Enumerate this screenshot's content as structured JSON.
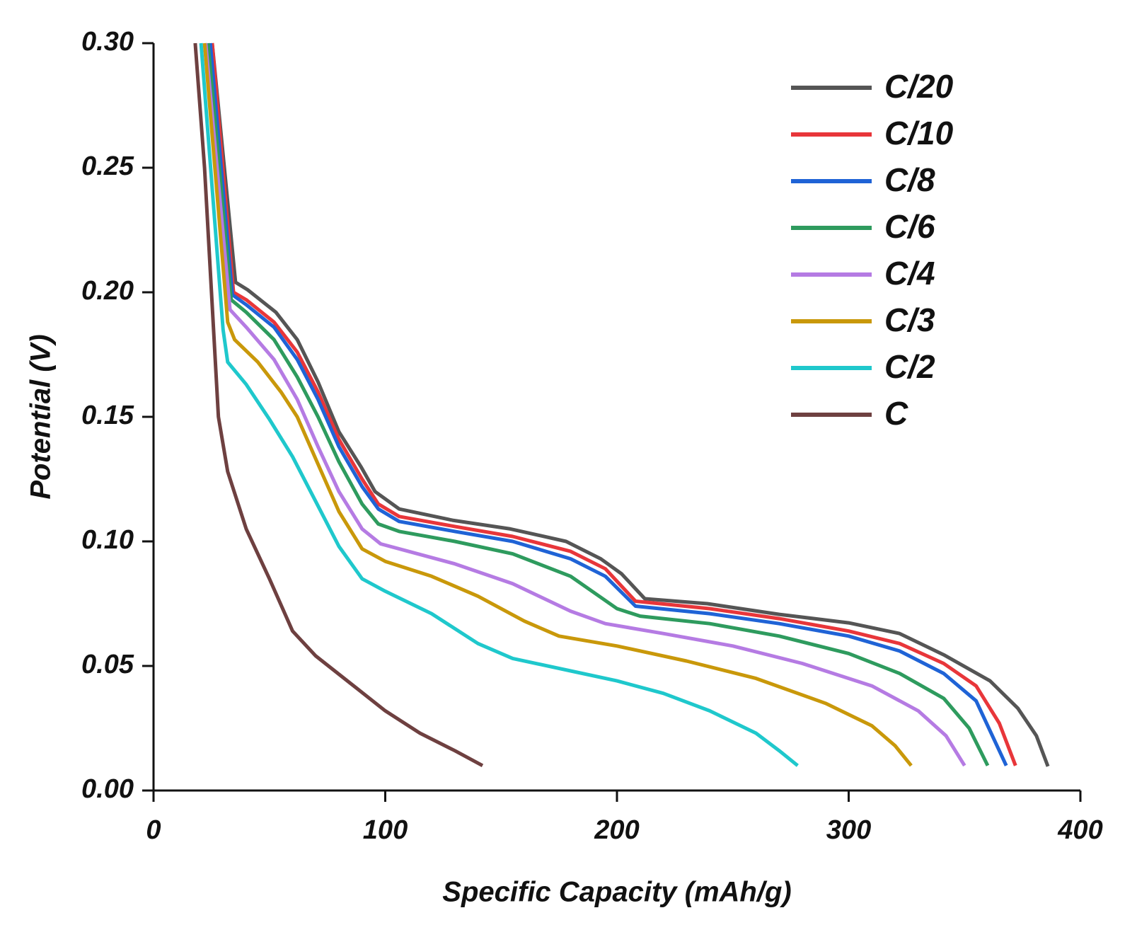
{
  "chart_data": {
    "type": "line",
    "x_label": "Specific Capacity (mAh/g)",
    "y_label": "Potential (V)",
    "xlim": [
      0,
      400
    ],
    "xticks": [
      0,
      100,
      200,
      300,
      400
    ],
    "ylim": [
      0,
      0.3
    ],
    "yticks": [
      {
        "value": 0,
        "label": "0.00"
      },
      {
        "value": 0.05,
        "label": "0.05"
      },
      {
        "value": 0.1,
        "label": "0.10"
      },
      {
        "value": 0.15,
        "label": "0.15"
      },
      {
        "value": 0.2,
        "label": "0.20"
      },
      {
        "value": 0.25,
        "label": "0.25"
      },
      {
        "value": 0.3,
        "label": "0.30"
      }
    ],
    "legend": "upper right",
    "series": [
      {
        "name": "C/20",
        "color": "#555555",
        "x": [
          25.3,
          35.4,
          40.6,
          52.8,
          62,
          71,
          80,
          89.5,
          95.6,
          106,
          129,
          154,
          178,
          193,
          202,
          212,
          239,
          270,
          300,
          322,
          341,
          361,
          373,
          381,
          386
        ],
        "values": [
          0.3,
          0.204,
          0.201,
          0.192,
          0.181,
          0.164,
          0.144,
          0.13,
          0.12,
          0.113,
          0.1085,
          0.105,
          0.1,
          0.093,
          0.087,
          0.077,
          0.075,
          0.0707,
          0.0673,
          0.063,
          0.0545,
          0.044,
          0.033,
          0.022,
          0.0097
        ]
      },
      {
        "name": "C/10",
        "color": "#e8363a",
        "x": [
          25.3,
          34.5,
          40,
          52,
          62,
          71,
          80,
          90,
          97,
          106,
          130,
          155,
          180,
          195,
          208,
          240,
          270,
          300,
          322,
          341,
          355,
          365,
          372
        ],
        "values": [
          0.3,
          0.2,
          0.197,
          0.188,
          0.176,
          0.16,
          0.141,
          0.125,
          0.115,
          0.11,
          0.106,
          0.102,
          0.096,
          0.089,
          0.076,
          0.073,
          0.069,
          0.064,
          0.059,
          0.051,
          0.042,
          0.027,
          0.01
        ]
      },
      {
        "name": "C/8",
        "color": "#1f63d6",
        "x": [
          24.5,
          34,
          40,
          52,
          62,
          71,
          80,
          90,
          97,
          106,
          130,
          155,
          180,
          195,
          208,
          240,
          270,
          300,
          322,
          341,
          355,
          368
        ],
        "values": [
          0.3,
          0.199,
          0.195,
          0.186,
          0.173,
          0.157,
          0.138,
          0.122,
          0.113,
          0.108,
          0.104,
          0.1,
          0.093,
          0.086,
          0.074,
          0.071,
          0.067,
          0.062,
          0.056,
          0.047,
          0.036,
          0.01
        ]
      },
      {
        "name": "C/6",
        "color": "#2e9b5e",
        "x": [
          23.5,
          33.5,
          40,
          52,
          62,
          71,
          80,
          90,
          97,
          106,
          130,
          155,
          180,
          200,
          210,
          240,
          270,
          300,
          322,
          341,
          352,
          360
        ],
        "values": [
          0.3,
          0.197,
          0.192,
          0.181,
          0.166,
          0.15,
          0.132,
          0.115,
          0.107,
          0.104,
          0.1,
          0.095,
          0.086,
          0.073,
          0.07,
          0.067,
          0.062,
          0.055,
          0.047,
          0.037,
          0.025,
          0.01
        ]
      },
      {
        "name": "C/4",
        "color": "#b57be3",
        "x": [
          22.5,
          33,
          40,
          52,
          62,
          71,
          80,
          90,
          98,
          110,
          130,
          155,
          180,
          195,
          220,
          250,
          280,
          310,
          330,
          342,
          350
        ],
        "values": [
          0.3,
          0.193,
          0.186,
          0.173,
          0.157,
          0.138,
          0.12,
          0.105,
          0.099,
          0.096,
          0.091,
          0.083,
          0.072,
          0.067,
          0.063,
          0.058,
          0.051,
          0.042,
          0.032,
          0.022,
          0.01
        ]
      },
      {
        "name": "C/3",
        "color": "#c9980a",
        "x": [
          22,
          32,
          35,
          45,
          55,
          62,
          71,
          80,
          90,
          100,
          120,
          140,
          160,
          175,
          200,
          230,
          260,
          290,
          310,
          320,
          327
        ],
        "values": [
          0.3,
          0.188,
          0.181,
          0.172,
          0.16,
          0.15,
          0.131,
          0.112,
          0.097,
          0.092,
          0.086,
          0.078,
          0.068,
          0.062,
          0.058,
          0.052,
          0.045,
          0.035,
          0.026,
          0.018,
          0.01
        ]
      },
      {
        "name": "C/2",
        "color": "#1fc8cc",
        "x": [
          20.5,
          30,
          32,
          40,
          50,
          60,
          70,
          80,
          90,
          100,
          120,
          140,
          155,
          180,
          200,
          220,
          240,
          260,
          270,
          278
        ],
        "values": [
          0.3,
          0.185,
          0.172,
          0.163,
          0.149,
          0.134,
          0.116,
          0.098,
          0.085,
          0.08,
          0.071,
          0.059,
          0.053,
          0.048,
          0.044,
          0.039,
          0.032,
          0.023,
          0.016,
          0.01
        ]
      },
      {
        "name": "C",
        "color": "#6e4040",
        "x": [
          18,
          22,
          25,
          28,
          32,
          40,
          50,
          60,
          70,
          85,
          100,
          115,
          130,
          142
        ],
        "values": [
          0.3,
          0.25,
          0.2,
          0.15,
          0.128,
          0.105,
          0.085,
          0.064,
          0.054,
          0.043,
          0.032,
          0.023,
          0.016,
          0.01
        ]
      }
    ]
  }
}
